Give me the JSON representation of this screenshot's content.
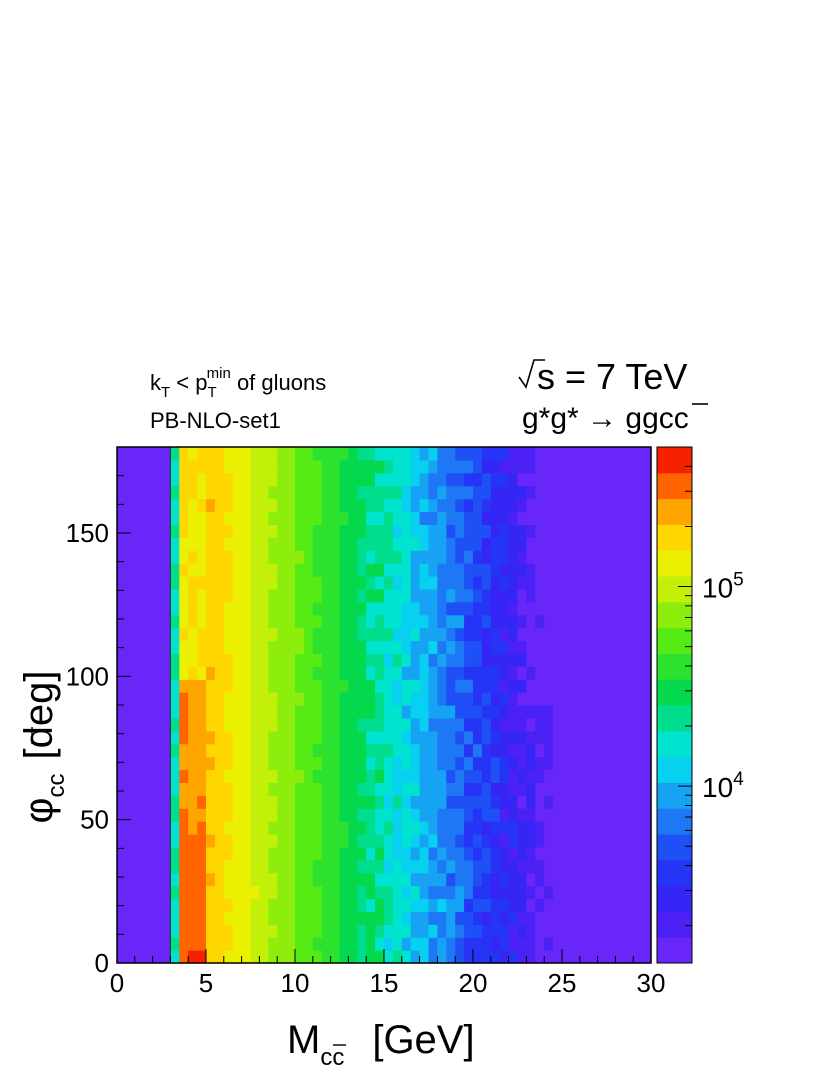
{
  "chart_data": {
    "type": "heatmap",
    "title_lines": [
      {
        "text": "k",
        "sub": "T",
        "mid": " < p",
        "sub2": "T",
        "sup2": "min",
        "tail": " of gluons"
      },
      {
        "text": "PB-NLO-set1"
      }
    ],
    "energy_label": "s = 7 TeV",
    "process_label": "g*g* → ggcc",
    "xlabel": "M",
    "xlabel_sub": "cc",
    "xlabel_unit": "[GeV]",
    "ylabel": "φ",
    "ylabel_sub": "cc",
    "ylabel_unit": "[deg]",
    "xlim": [
      0,
      30
    ],
    "ylim": [
      0,
      180
    ],
    "x_ticks": [
      0,
      5,
      10,
      15,
      20,
      25,
      30
    ],
    "y_ticks": [
      0,
      50,
      100,
      150
    ],
    "z_scale": "log",
    "z_range": [
      1300,
      500000
    ],
    "z_ticks": [
      {
        "value": 10000,
        "base": "10",
        "exp": "4"
      },
      {
        "value": 100000,
        "base": "10",
        "exp": "5"
      }
    ],
    "threshold_x": 3.0,
    "palette_levels": 20,
    "grid": false
  }
}
